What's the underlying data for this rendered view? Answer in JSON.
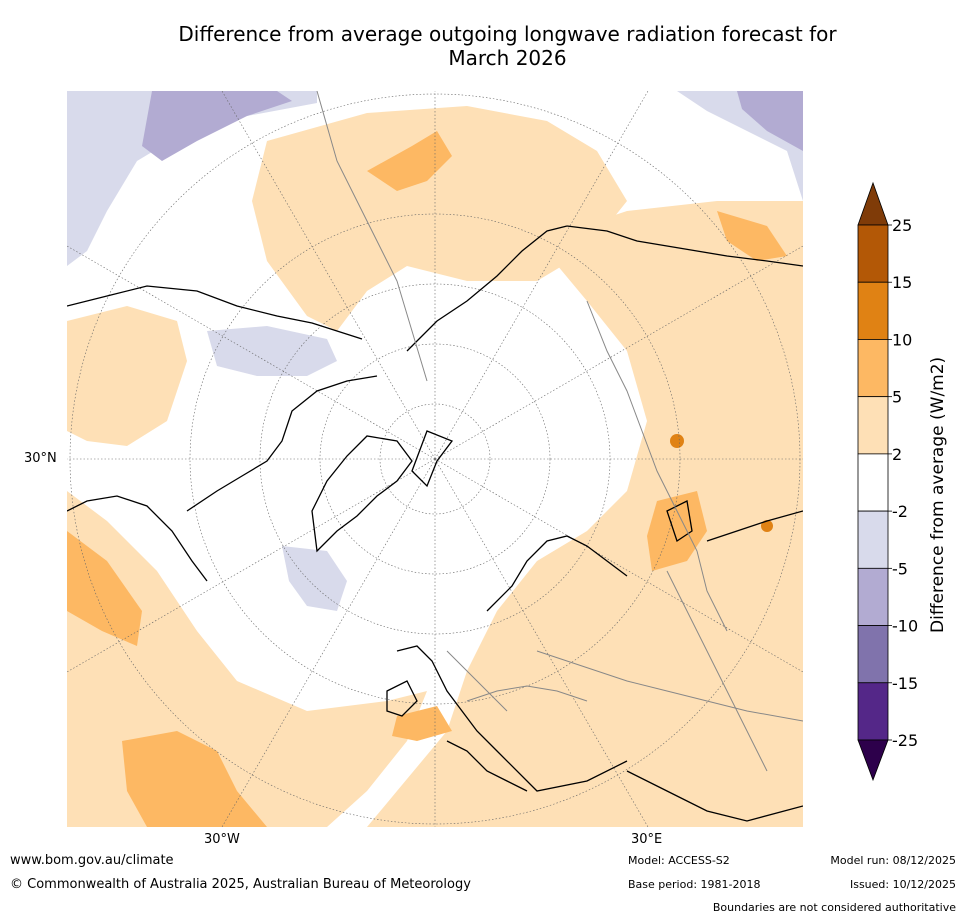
{
  "title": {
    "line1": "Difference from average outgoing longwave radiation forecast for",
    "line2": "March 2026"
  },
  "map": {
    "projection": "north-polar-stereographic",
    "lat_labels": {
      "left": "30°N"
    },
    "lon_labels": {
      "bottom_left": "30°W",
      "bottom_right": "30°E"
    }
  },
  "colorbar": {
    "title": "Difference from average (W/m2)",
    "ticks": [
      "25",
      "15",
      "10",
      "5",
      "2",
      "-2",
      "-5",
      "-10",
      "-15",
      "-25"
    ],
    "colors": {
      "over": "#7f3b08",
      "bins": [
        "#b35806",
        "#e08214",
        "#fdb863",
        "#fee0b6",
        "#ffffff",
        "#d8daeb",
        "#b2abd2",
        "#8073ac",
        "#542788"
      ],
      "under": "#2d004b"
    }
  },
  "footer": {
    "website": "www.bom.gov.au/climate",
    "copyright": "© Commonwealth of Australia 2025, Australian Bureau of Meteorology",
    "model": "Model: ACCESS-S2",
    "base_period": "Base period: 1981-2018",
    "model_run": "Model run: 08/12/2025",
    "issued": "Issued: 10/12/2025",
    "disclaimer": "Boundaries are not considered authoritative"
  }
}
